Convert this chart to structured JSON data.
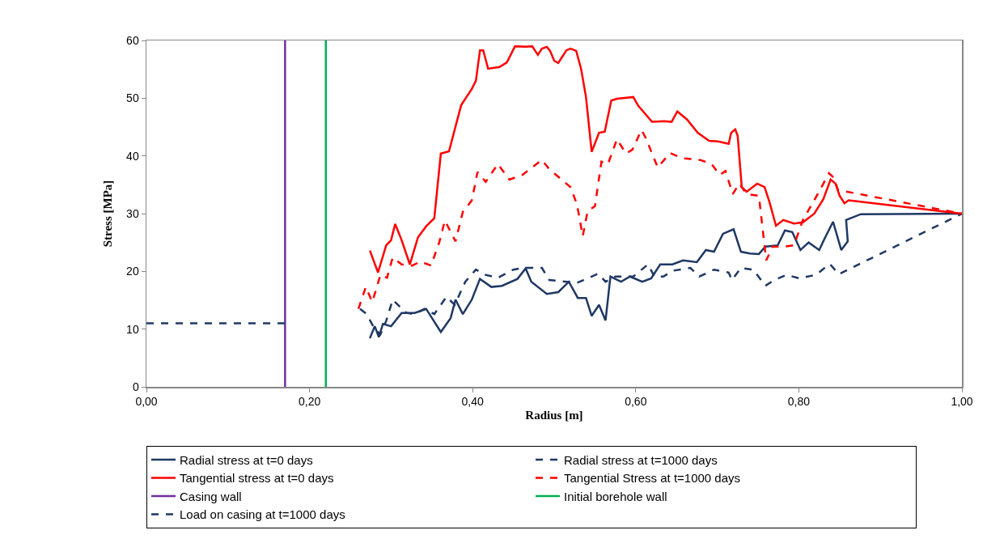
{
  "chart_data": {
    "type": "line",
    "xlabel": "Radius [m]",
    "ylabel": "Stress [MPa]",
    "xlim": [
      0,
      1
    ],
    "xticks": [
      {
        "value": 0,
        "label": "0,00"
      },
      {
        "value": 0.2,
        "label": "0,20"
      },
      {
        "value": 0.4,
        "label": "0,40"
      },
      {
        "value": 0.6,
        "label": "0,60"
      },
      {
        "value": 0.8,
        "label": "0,80"
      },
      {
        "value": 1,
        "label": "1,00"
      }
    ],
    "ylim": [
      0,
      60
    ],
    "yticks": [
      0,
      10,
      20,
      30,
      40,
      50,
      60
    ],
    "grid": false,
    "legend": "bottom",
    "marker": "none",
    "series": [
      {
        "name": "Radial stress at t=0 days",
        "color": "#1f3864",
        "line_style": "solid",
        "x": [
          0.274,
          0.28,
          0.285,
          0.29,
          0.3,
          0.313,
          0.329,
          0.343,
          0.361,
          0.373,
          0.379,
          0.388,
          0.399,
          0.409,
          0.423,
          0.436,
          0.455,
          0.465,
          0.472,
          0.491,
          0.505,
          0.518,
          0.529,
          0.539,
          0.546,
          0.555,
          0.563,
          0.569,
          0.582,
          0.593,
          0.608,
          0.619,
          0.63,
          0.645,
          0.658,
          0.675,
          0.686,
          0.696,
          0.707,
          0.72,
          0.729,
          0.74,
          0.751,
          0.759,
          0.774,
          0.783,
          0.792,
          0.802,
          0.812,
          0.825,
          0.832,
          0.842,
          0.852,
          0.86,
          0.858,
          0.876,
          1.0
        ],
        "values": [
          8.4,
          10.5,
          8.6,
          10.9,
          10.5,
          12.8,
          12.8,
          13.5,
          9.5,
          11.9,
          15.1,
          12.6,
          15.1,
          18.7,
          17.3,
          17.5,
          18.7,
          20.5,
          18.2,
          16.1,
          16.4,
          18.2,
          15.4,
          15.4,
          12.3,
          14.2,
          11.5,
          19.1,
          18.2,
          19.1,
          18.2,
          18.8,
          21.2,
          21.2,
          21.9,
          21.6,
          23.7,
          23.4,
          26.5,
          27.3,
          23.4,
          23.1,
          23.0,
          24.3,
          24.5,
          27.1,
          26.8,
          23.7,
          25.0,
          23.7,
          25.8,
          28.6,
          23.7,
          25.2,
          28.9,
          29.9,
          30.0
        ]
      },
      {
        "name": "Radial stress at t=1000 days",
        "color": "#1f3864",
        "line_style": "dashed",
        "x": [
          0.262,
          0.27,
          0.28,
          0.287,
          0.294,
          0.302,
          0.312,
          0.319,
          0.329,
          0.341,
          0.353,
          0.368,
          0.378,
          0.391,
          0.404,
          0.416,
          0.431,
          0.45,
          0.461,
          0.485,
          0.494,
          0.516,
          0.528,
          0.554,
          0.563,
          0.575,
          0.597,
          0.615,
          0.623,
          0.634,
          0.645,
          0.667,
          0.678,
          0.696,
          0.714,
          0.718,
          0.729,
          0.744,
          0.759,
          0.77,
          0.785,
          0.8,
          0.821,
          0.838,
          0.849,
          1.0
        ],
        "values": [
          13.5,
          12.6,
          10.0,
          9.1,
          11.4,
          15.1,
          13.7,
          12.8,
          12.6,
          13.5,
          12.6,
          15.6,
          14.2,
          18.2,
          20.3,
          19.4,
          18.9,
          20.3,
          20.6,
          20.6,
          18.5,
          18.2,
          18.0,
          19.6,
          18.2,
          19.1,
          19.1,
          21.2,
          19.1,
          19.1,
          20.1,
          20.6,
          19.1,
          20.3,
          19.8,
          18.5,
          20.6,
          20.3,
          17.5,
          18.5,
          19.4,
          18.8,
          19.4,
          21.3,
          19.5,
          30.0
        ]
      },
      {
        "name": "Tangential stress at t=0 days",
        "color": "#ff0000",
        "line_style": "solid",
        "x": [
          0.274,
          0.284,
          0.294,
          0.3,
          0.305,
          0.313,
          0.323,
          0.333,
          0.343,
          0.353,
          0.361,
          0.371,
          0.386,
          0.399,
          0.404,
          0.409,
          0.413,
          0.419,
          0.433,
          0.442,
          0.452,
          0.465,
          0.473,
          0.48,
          0.485,
          0.491,
          0.495,
          0.5,
          0.505,
          0.51,
          0.515,
          0.52,
          0.527,
          0.533,
          0.539,
          0.546,
          0.555,
          0.562,
          0.57,
          0.577,
          0.597,
          0.603,
          0.62,
          0.635,
          0.644,
          0.651,
          0.663,
          0.676,
          0.69,
          0.701,
          0.714,
          0.717,
          0.722,
          0.725,
          0.73,
          0.736,
          0.749,
          0.758,
          0.764,
          0.772,
          0.781,
          0.794,
          0.805,
          0.819,
          0.83,
          0.839,
          0.845,
          0.85,
          0.856,
          0.861,
          1.0
        ],
        "values": [
          23.6,
          19.8,
          24.5,
          25.4,
          28.2,
          25.4,
          21.2,
          25.9,
          27.8,
          29.2,
          40.4,
          40.8,
          48.8,
          51.6,
          53.0,
          58.3,
          58.3,
          55.1,
          55.4,
          56.2,
          59.0,
          58.9,
          59.0,
          57.5,
          58.6,
          58.9,
          58.2,
          56.5,
          56.1,
          57.2,
          58.3,
          58.6,
          58.2,
          55.1,
          50.2,
          40.7,
          44.0,
          44.2,
          49.6,
          49.9,
          50.2,
          48.7,
          45.9,
          46.0,
          45.9,
          47.7,
          46.3,
          44.0,
          42.6,
          42.5,
          42.1,
          44.0,
          44.6,
          43.5,
          34.6,
          33.8,
          35.2,
          34.6,
          32.0,
          27.9,
          28.9,
          28.3,
          28.5,
          30.0,
          32.5,
          35.9,
          35.2,
          33.1,
          31.8,
          32.3,
          30.0
        ]
      },
      {
        "name": "Tangential Stress at t=1000 days",
        "color": "#ff0000",
        "line_style": "dashed",
        "x": [
          0.26,
          0.269,
          0.277,
          0.287,
          0.295,
          0.302,
          0.313,
          0.326,
          0.336,
          0.349,
          0.359,
          0.366,
          0.379,
          0.388,
          0.399,
          0.406,
          0.416,
          0.431,
          0.445,
          0.461,
          0.485,
          0.494,
          0.52,
          0.528,
          0.535,
          0.541,
          0.55,
          0.558,
          0.566,
          0.577,
          0.588,
          0.596,
          0.607,
          0.612,
          0.627,
          0.642,
          0.657,
          0.679,
          0.693,
          0.703,
          0.71,
          0.719,
          0.727,
          0.736,
          0.751,
          0.76,
          0.768,
          0.782,
          0.794,
          0.805,
          0.822,
          0.837,
          0.843,
          0.848,
          1.0
        ],
        "values": [
          13.5,
          17.3,
          14.7,
          19.4,
          18.9,
          22.4,
          21.2,
          21.0,
          21.7,
          21.0,
          25.0,
          28.8,
          25.2,
          30.3,
          32.3,
          37.2,
          35.5,
          38.6,
          35.9,
          36.7,
          39.3,
          37.7,
          34.6,
          31.6,
          26.1,
          30.4,
          31.3,
          39.0,
          38.6,
          42.9,
          40.4,
          41.1,
          44.5,
          43.2,
          38.0,
          40.5,
          39.6,
          39.3,
          38.6,
          36.7,
          37.4,
          33.4,
          35.2,
          33.4,
          33.1,
          21.9,
          24.3,
          24.3,
          24.5,
          28.9,
          33.1,
          37.0,
          36.2,
          34.1,
          30.0
        ]
      },
      {
        "name": "Casing wall",
        "color": "#7030a0",
        "line_style": "solid",
        "x": [
          0.17,
          0.17
        ],
        "values": [
          0,
          60
        ]
      },
      {
        "name": "Initial borehole wall",
        "color": "#00b050",
        "line_style": "solid",
        "x": [
          0.22,
          0.22
        ],
        "values": [
          0,
          60
        ]
      },
      {
        "name": "Load on casing at t=1000 days",
        "color": "#1f3864",
        "line_style": "dashed",
        "x": [
          0,
          0.17
        ],
        "values": [
          11,
          11
        ]
      }
    ]
  }
}
